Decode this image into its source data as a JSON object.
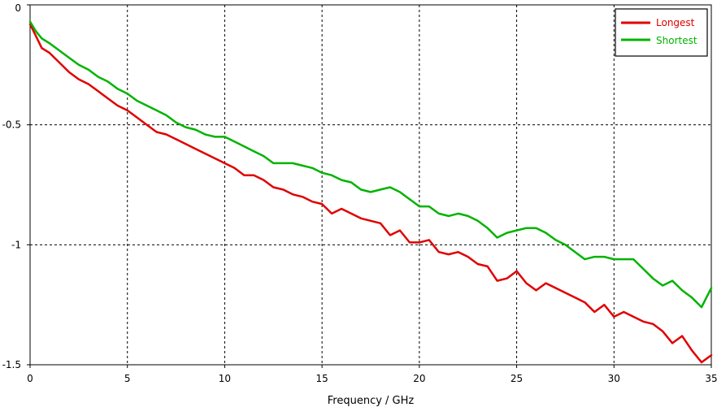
{
  "chart_data": {
    "type": "line",
    "xlabel": "Frequency / GHz",
    "ylabel": "",
    "xlim": [
      0,
      35
    ],
    "ylim": [
      -1.5,
      0
    ],
    "xticks": [
      0,
      5,
      10,
      15,
      20,
      25,
      30,
      35
    ],
    "yticks": [
      0,
      -0.5,
      -1,
      -1.5
    ],
    "xtick_labels": [
      "0",
      "5",
      "10",
      "15",
      "20",
      "25",
      "30",
      "35"
    ],
    "ytick_labels": [
      "0",
      "-0.5",
      "-1",
      "-1.5"
    ],
    "grid": true,
    "legend_position": "top-right",
    "series": [
      {
        "name": "Longest",
        "color": "#e00000",
        "x": [
          0,
          0.3,
          0.6,
          1,
          1.5,
          2,
          2.5,
          3,
          3.5,
          4,
          4.5,
          5,
          5.5,
          6,
          6.5,
          7,
          7.5,
          8,
          8.5,
          9,
          9.5,
          10,
          10.5,
          11,
          11.5,
          12,
          12.5,
          13,
          13.5,
          14,
          14.5,
          15,
          15.5,
          16,
          16.5,
          17,
          17.5,
          18,
          18.5,
          19,
          19.5,
          20,
          20.5,
          21,
          21.5,
          22,
          22.5,
          23,
          23.5,
          24,
          24.5,
          25,
          25.5,
          26,
          26.5,
          27,
          27.5,
          28,
          28.5,
          29,
          29.5,
          30,
          30.5,
          31,
          31.5,
          32,
          32.5,
          33,
          33.5,
          34,
          34.5,
          35
        ],
        "y": [
          -0.08,
          -0.13,
          -0.18,
          -0.2,
          -0.24,
          -0.28,
          -0.31,
          -0.33,
          -0.36,
          -0.39,
          -0.42,
          -0.44,
          -0.47,
          -0.5,
          -0.53,
          -0.54,
          -0.56,
          -0.58,
          -0.6,
          -0.62,
          -0.64,
          -0.66,
          -0.68,
          -0.71,
          -0.71,
          -0.73,
          -0.76,
          -0.77,
          -0.79,
          -0.8,
          -0.82,
          -0.83,
          -0.87,
          -0.85,
          -0.87,
          -0.89,
          -0.9,
          -0.91,
          -0.96,
          -0.94,
          -0.99,
          -0.99,
          -0.98,
          -1.03,
          -1.04,
          -1.03,
          -1.05,
          -1.08,
          -1.09,
          -1.15,
          -1.14,
          -1.11,
          -1.16,
          -1.19,
          -1.16,
          -1.18,
          -1.2,
          -1.22,
          -1.24,
          -1.28,
          -1.25,
          -1.3,
          -1.28,
          -1.3,
          -1.32,
          -1.33,
          -1.36,
          -1.41,
          -1.38,
          -1.44,
          -1.49,
          -1.46
        ]
      },
      {
        "name": "Shortest",
        "color": "#00b400",
        "x": [
          0,
          0.3,
          0.6,
          1,
          1.5,
          2,
          2.5,
          3,
          3.5,
          4,
          4.5,
          5,
          5.5,
          6,
          6.5,
          7,
          7.5,
          8,
          8.5,
          9,
          9.5,
          10,
          10.5,
          11,
          11.5,
          12,
          12.5,
          13,
          13.5,
          14,
          14.5,
          15,
          15.5,
          16,
          16.5,
          17,
          17.5,
          18,
          18.5,
          19,
          19.5,
          20,
          20.5,
          21,
          21.5,
          22,
          22.5,
          23,
          23.5,
          24,
          24.5,
          25,
          25.5,
          26,
          26.5,
          27,
          27.5,
          28,
          28.5,
          29,
          29.5,
          30,
          30.5,
          31,
          31.5,
          32,
          32.5,
          33,
          33.5,
          34,
          34.5,
          35
        ],
        "y": [
          -0.07,
          -0.11,
          -0.14,
          -0.16,
          -0.19,
          -0.22,
          -0.25,
          -0.27,
          -0.3,
          -0.32,
          -0.35,
          -0.37,
          -0.4,
          -0.42,
          -0.44,
          -0.46,
          -0.49,
          -0.51,
          -0.52,
          -0.54,
          -0.55,
          -0.55,
          -0.57,
          -0.59,
          -0.61,
          -0.63,
          -0.66,
          -0.66,
          -0.66,
          -0.67,
          -0.68,
          -0.7,
          -0.71,
          -0.73,
          -0.74,
          -0.77,
          -0.78,
          -0.77,
          -0.76,
          -0.78,
          -0.81,
          -0.84,
          -0.84,
          -0.87,
          -0.88,
          -0.87,
          -0.88,
          -0.9,
          -0.93,
          -0.97,
          -0.95,
          -0.94,
          -0.93,
          -0.93,
          -0.95,
          -0.98,
          -1.0,
          -1.03,
          -1.06,
          -1.05,
          -1.05,
          -1.06,
          -1.06,
          -1.06,
          -1.1,
          -1.14,
          -1.17,
          -1.15,
          -1.19,
          -1.22,
          -1.26,
          -1.18
        ]
      }
    ]
  }
}
